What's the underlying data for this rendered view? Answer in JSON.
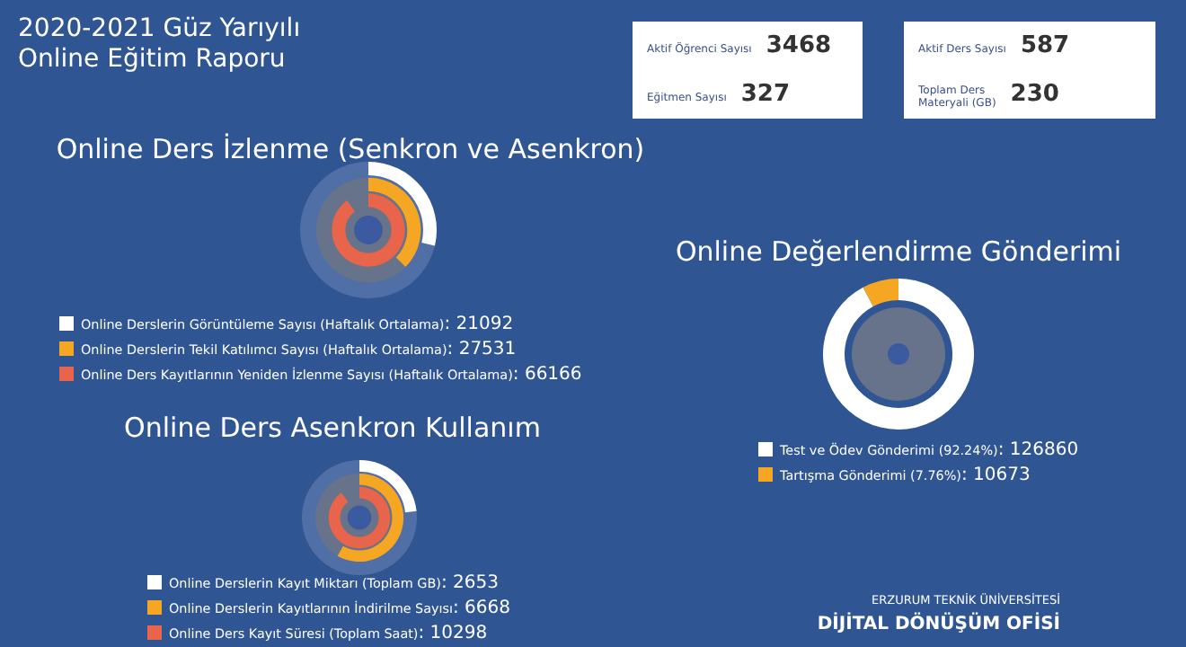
{
  "chart_data": [
    {
      "type": "other",
      "title": "2020-2021 Güz Yarıyılı\nOnline Eğitim Raporu",
      "categories": [
        "Aktif Öğrenci Sayısı",
        "Eğitmen Sayısı",
        "Aktif Ders Sayısı",
        "Toplam Ders\nMateryali (GB)"
      ],
      "values": [
        3468,
        327,
        587,
        230
      ],
      "data_labels": true
    },
    {
      "type": "other",
      "title": "Online Ders İzlenme (Senkron ve Asenkron)",
      "categories": [
        "Online Derslerin Görüntüleme Sayısı (Haftalık Ortalama)",
        "Online Derslerin Tekil Katılımcı Sayısı (Haftalık Ortalama)",
        "Online Ders Kayıtlarının Yeniden İzlenme Sayısı (Haftalık Ortalama)"
      ],
      "values": [
        21092,
        27531,
        66166
      ],
      "value_labels": [
        ": 21092",
        ": 27531",
        ": 66166"
      ],
      "colors": [
        "#ffffff",
        "#f5a623",
        "#e8644a"
      ]
    },
    {
      "type": "donut",
      "title": "Online Değerlendirme Gönderimi",
      "categories": [
        "Test ve Ödev Gönderimi (92.24%)",
        "Tartışma Gönderimi (7.76%)"
      ],
      "values": [
        126860,
        10673
      ],
      "value_labels": [
        ": 126860",
        ": 10673"
      ],
      "colors": [
        "#ffffff",
        "#f5a623"
      ],
      "legend": "bottom",
      "annotations": [
        "ERZURUM TEKNİK ÜNİVERSİTESİ",
        "DİJİTAL DÖNÜŞÜM OFİSİ"
      ]
    },
    {
      "type": "other",
      "title": "Online Ders Asenkron Kullanım",
      "categories": [
        "Online Derslerin Kayıt Miktarı (Toplam GB)",
        "Online Derslerin Kayıtlarının İndirilme Sayısı",
        "Online Ders Kayıt Süresi (Toplam Saat)"
      ],
      "values": [
        2653,
        6668,
        10298
      ],
      "value_labels": [
        ": 2653",
        ": 6668",
        ": 10298"
      ],
      "colors": [
        "#ffffff",
        "#f5a623",
        "#e8644a"
      ]
    }
  ]
}
